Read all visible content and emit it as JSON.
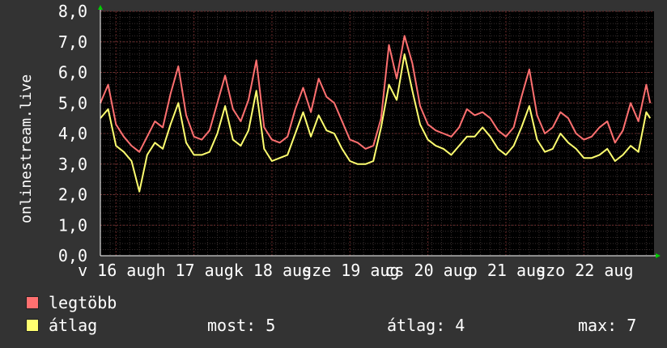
{
  "chart_data": {
    "type": "line",
    "ylabel": "onlinestream.live",
    "ylim": [
      0,
      8
    ],
    "y_ticks": [
      "0,0",
      "1,0",
      "2,0",
      "3,0",
      "4,0",
      "5,0",
      "6,0",
      "7,0",
      "8,0"
    ],
    "x_tick_labels": [
      "v 16 aug",
      "h 17 aug",
      "k 18 aug",
      "sze 19 aug",
      "cs 20 aug",
      "p 21 aug",
      "szo 22 aug"
    ],
    "x_domain": [
      0,
      7.1
    ],
    "x_ticks": [
      0.2,
      1.2,
      2.2,
      3.2,
      4.2,
      5.2,
      6.2
    ],
    "series": [
      {
        "name": "legtöbb",
        "color": "#ff7070",
        "x": [
          0,
          0.1,
          0.2,
          0.3,
          0.4,
          0.5,
          0.6,
          0.7,
          0.8,
          0.9,
          1.0,
          1.1,
          1.2,
          1.3,
          1.4,
          1.5,
          1.6,
          1.7,
          1.8,
          1.9,
          2.0,
          2.1,
          2.2,
          2.3,
          2.4,
          2.5,
          2.6,
          2.7,
          2.8,
          2.9,
          3.0,
          3.1,
          3.2,
          3.3,
          3.4,
          3.5,
          3.6,
          3.7,
          3.8,
          3.9,
          4.0,
          4.1,
          4.2,
          4.3,
          4.4,
          4.5,
          4.6,
          4.7,
          4.8,
          4.9,
          5.0,
          5.1,
          5.2,
          5.3,
          5.4,
          5.5,
          5.6,
          5.7,
          5.8,
          5.9,
          6.0,
          6.1,
          6.2,
          6.3,
          6.4,
          6.5,
          6.6,
          6.7,
          6.8,
          6.9,
          7.0,
          7.05
        ],
        "y": [
          5.0,
          5.6,
          4.3,
          3.9,
          3.6,
          3.4,
          3.9,
          4.4,
          4.2,
          5.3,
          6.2,
          4.6,
          3.9,
          3.8,
          4.1,
          5.0,
          5.9,
          4.8,
          4.4,
          5.1,
          6.4,
          4.2,
          3.8,
          3.7,
          3.9,
          4.8,
          5.5,
          4.7,
          5.8,
          5.2,
          5.0,
          4.4,
          3.8,
          3.7,
          3.5,
          3.6,
          4.5,
          6.9,
          5.8,
          7.2,
          6.3,
          4.9,
          4.3,
          4.1,
          4.0,
          3.9,
          4.2,
          4.8,
          4.6,
          4.7,
          4.5,
          4.1,
          3.9,
          4.2,
          5.2,
          6.1,
          4.6,
          4.0,
          4.2,
          4.7,
          4.5,
          4.0,
          3.8,
          3.9,
          4.2,
          4.4,
          3.7,
          4.1,
          5.0,
          4.4,
          5.6,
          5.0
        ]
      },
      {
        "name": "átlag",
        "color": "#ffff70",
        "x": [
          0,
          0.1,
          0.2,
          0.3,
          0.4,
          0.5,
          0.6,
          0.7,
          0.8,
          0.9,
          1.0,
          1.1,
          1.2,
          1.3,
          1.4,
          1.5,
          1.6,
          1.7,
          1.8,
          1.9,
          2.0,
          2.1,
          2.2,
          2.3,
          2.4,
          2.5,
          2.6,
          2.7,
          2.8,
          2.9,
          3.0,
          3.1,
          3.2,
          3.3,
          3.4,
          3.5,
          3.6,
          3.7,
          3.8,
          3.9,
          4.0,
          4.1,
          4.2,
          4.3,
          4.4,
          4.5,
          4.6,
          4.7,
          4.8,
          4.9,
          5.0,
          5.1,
          5.2,
          5.3,
          5.4,
          5.5,
          5.6,
          5.7,
          5.8,
          5.9,
          6.0,
          6.1,
          6.2,
          6.3,
          6.4,
          6.5,
          6.6,
          6.7,
          6.8,
          6.9,
          7.0,
          7.05
        ],
        "y": [
          4.5,
          4.8,
          3.6,
          3.4,
          3.1,
          2.1,
          3.3,
          3.7,
          3.5,
          4.3,
          5.0,
          3.7,
          3.3,
          3.3,
          3.4,
          4.0,
          4.9,
          3.8,
          3.6,
          4.1,
          5.4,
          3.5,
          3.1,
          3.2,
          3.3,
          4.0,
          4.7,
          3.9,
          4.6,
          4.1,
          4.0,
          3.5,
          3.1,
          3.0,
          3.0,
          3.1,
          4.2,
          5.6,
          5.1,
          6.6,
          5.4,
          4.3,
          3.8,
          3.6,
          3.5,
          3.3,
          3.6,
          3.9,
          3.9,
          4.2,
          3.9,
          3.5,
          3.3,
          3.6,
          4.2,
          4.9,
          3.8,
          3.4,
          3.5,
          4.0,
          3.7,
          3.5,
          3.2,
          3.2,
          3.3,
          3.5,
          3.1,
          3.3,
          3.6,
          3.4,
          4.7,
          4.5
        ]
      }
    ],
    "grid": true,
    "legend": "bottom"
  },
  "stats": {
    "most": "most: 5",
    "atlag": "átlag: 4",
    "max": "max: 7"
  },
  "legend_items": [
    {
      "label": "legtöbb",
      "color": "#ff7070"
    },
    {
      "label": "átlag",
      "color": "#ffff70"
    }
  ]
}
